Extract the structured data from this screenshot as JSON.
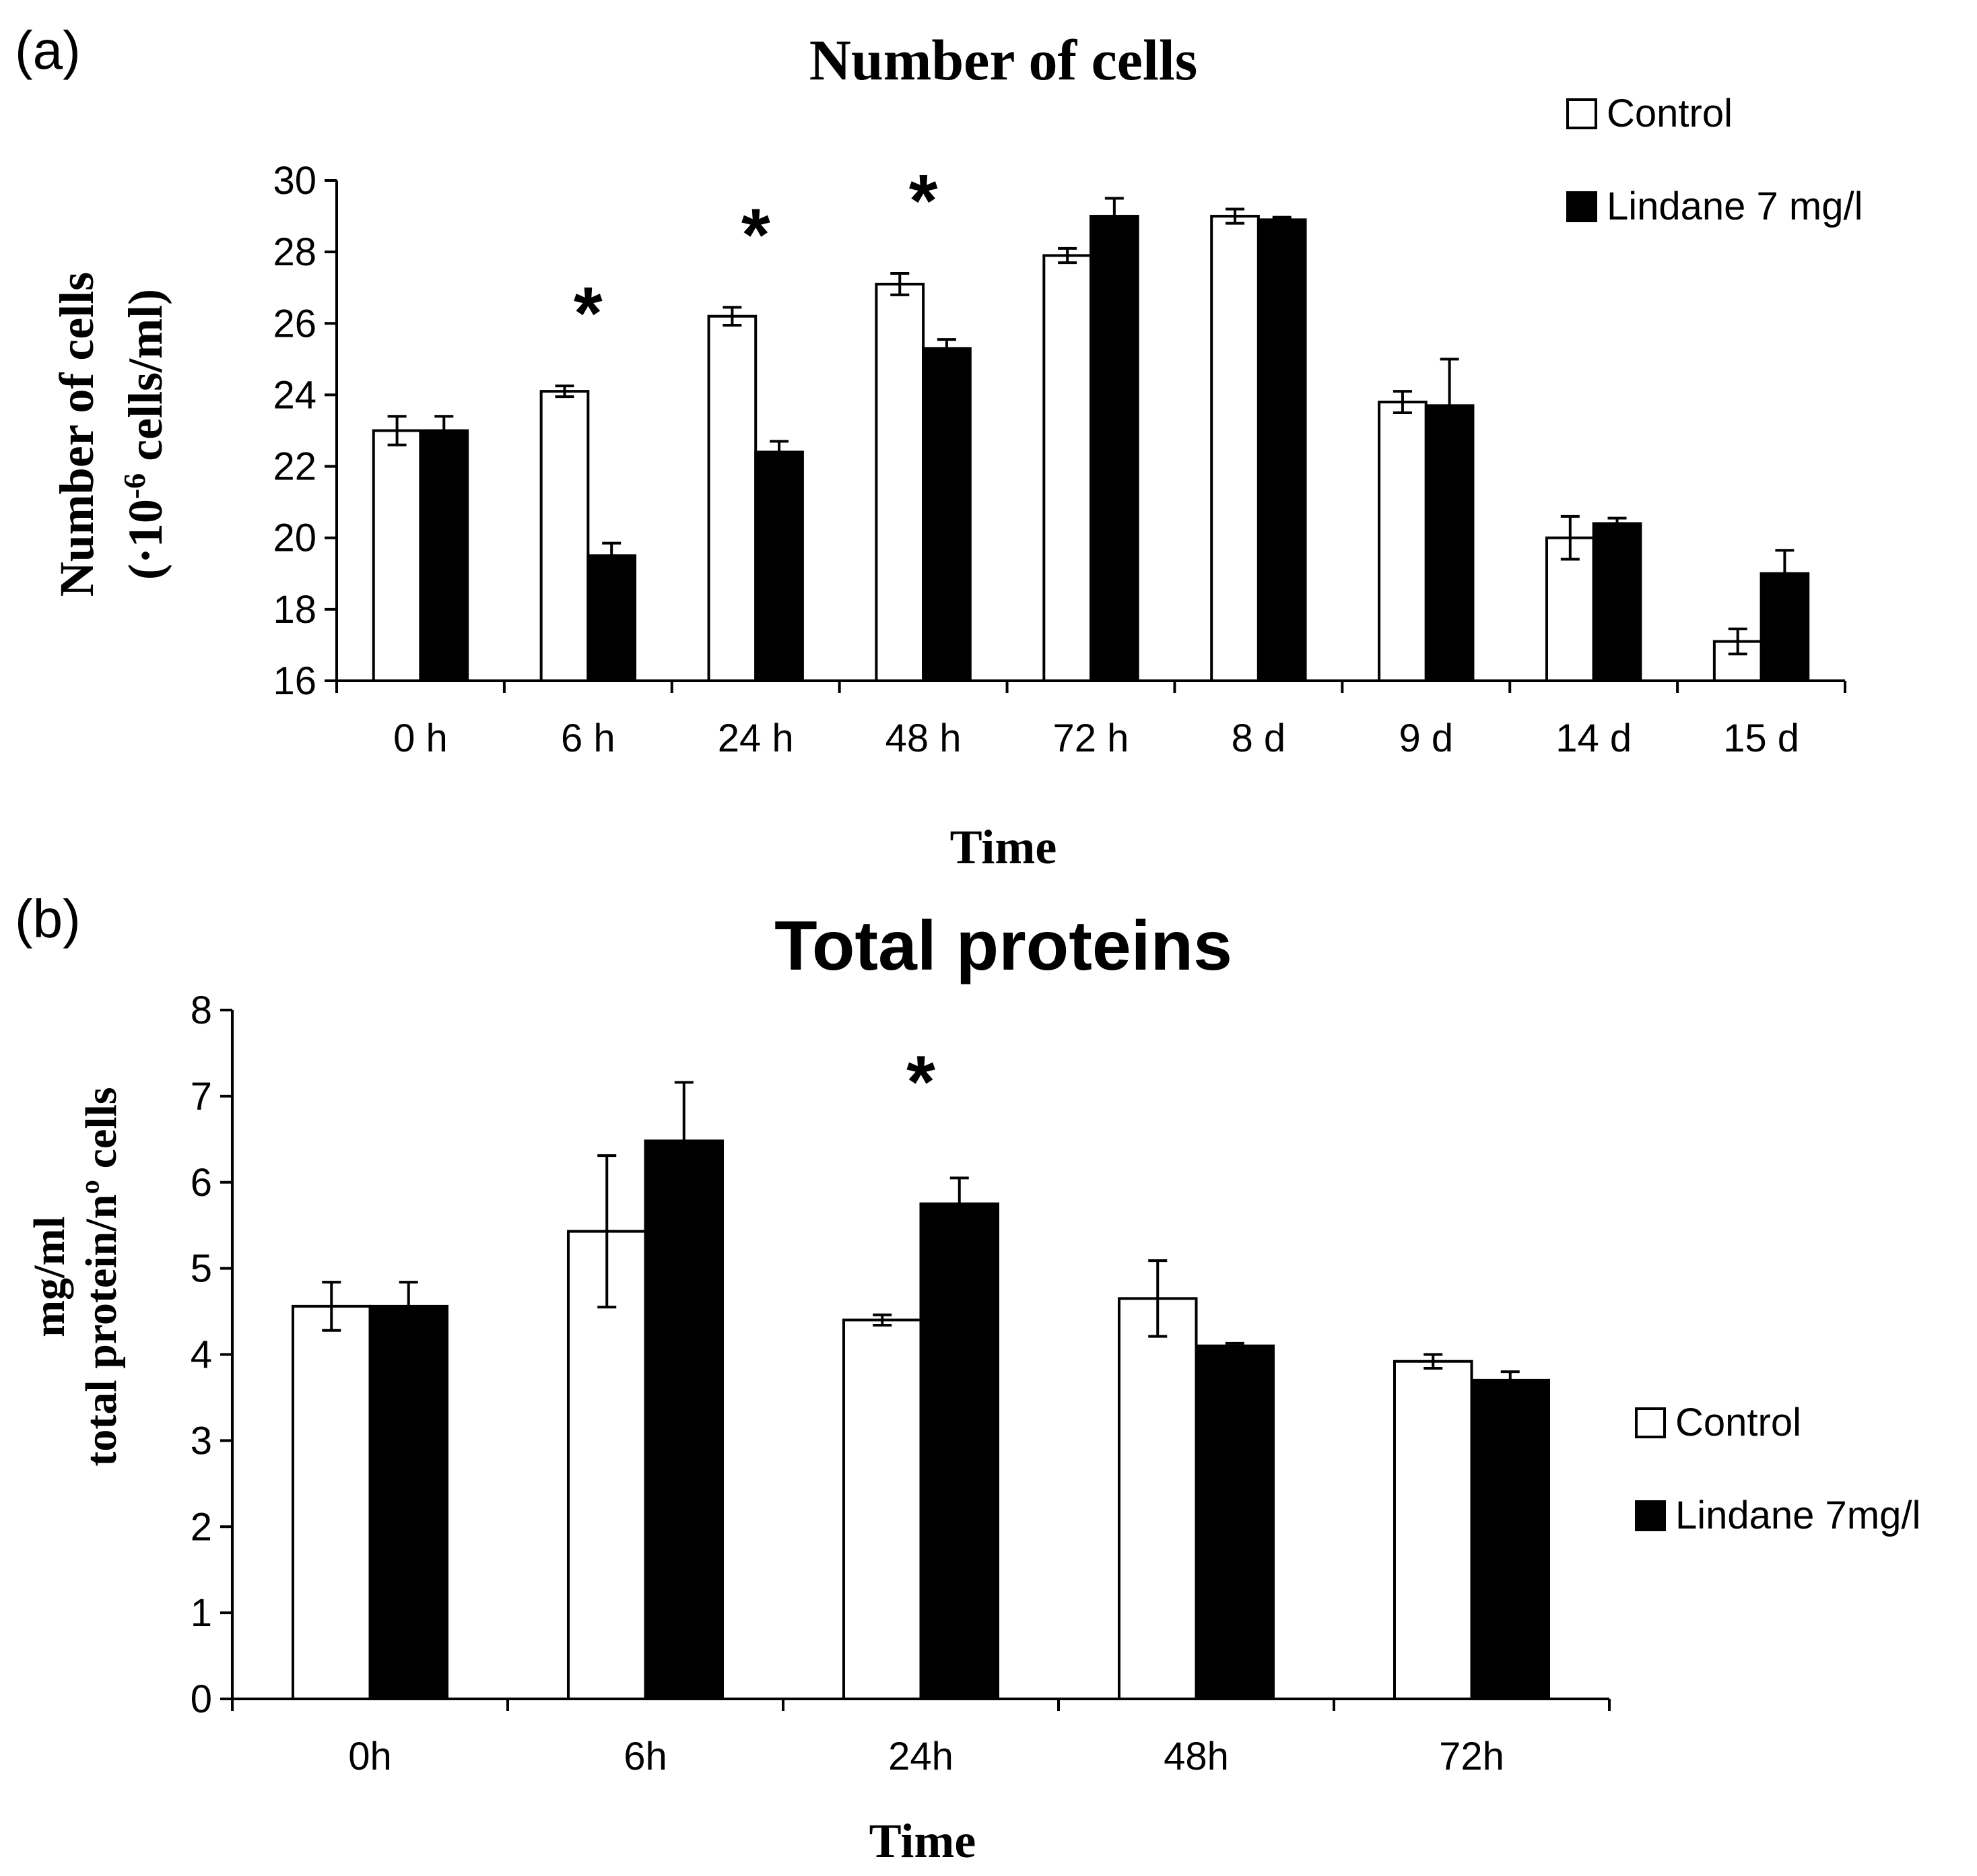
{
  "chart_data": [
    {
      "panel_label": "(a)",
      "type": "bar",
      "title": "Number of cells",
      "xlabel": "Time",
      "ylabel": [
        "Number of cells",
        "(·10",
        "-6",
        " cells/ml)"
      ],
      "ylim": [
        16,
        30
      ],
      "yticks": [
        16,
        18,
        20,
        22,
        24,
        26,
        28,
        30
      ],
      "categories": [
        "0 h",
        "6 h",
        "24 h",
        "48 h",
        "72 h",
        "8 d",
        "9 d",
        "14 d",
        "15 d"
      ],
      "series": [
        {
          "name": "Control",
          "color": "#ffffff",
          "values": [
            23.0,
            24.1,
            26.2,
            27.1,
            27.9,
            29.0,
            23.8,
            20.0,
            17.1
          ],
          "errors": [
            0.4,
            0.15,
            0.25,
            0.3,
            0.2,
            0.2,
            0.3,
            0.6,
            0.35
          ]
        },
        {
          "name": "Lindane 7 mg/l",
          "color": "#000000",
          "values": [
            23.0,
            19.5,
            22.4,
            25.3,
            29.0,
            28.9,
            23.7,
            20.4,
            19.0
          ],
          "errors": [
            0.4,
            0.35,
            0.3,
            0.25,
            0.5,
            0.07,
            1.3,
            0.15,
            0.65
          ]
        }
      ],
      "significance": [
        "",
        "*",
        "*",
        "*",
        "",
        "",
        "",
        "",
        ""
      ],
      "legend_position": "top-right"
    },
    {
      "panel_label": "(b)",
      "type": "bar",
      "title": "Total proteins",
      "xlabel": "Time",
      "ylabel": [
        "mg/ml",
        "total protein/nº cells"
      ],
      "ylim": [
        0,
        8
      ],
      "yticks": [
        0,
        1,
        2,
        3,
        4,
        5,
        6,
        7,
        8
      ],
      "categories": [
        "0h",
        "6h",
        "24h",
        "48h",
        "72h"
      ],
      "series": [
        {
          "name": "Control",
          "color": "#ffffff",
          "values": [
            4.56,
            5.43,
            4.4,
            4.65,
            3.92
          ],
          "errors": [
            0.28,
            0.88,
            0.06,
            0.44,
            0.08
          ]
        },
        {
          "name": "Lindane 7mg/l",
          "color": "#000000",
          "values": [
            4.56,
            6.48,
            5.75,
            4.1,
            3.7
          ],
          "errors": [
            0.28,
            0.68,
            0.3,
            0.03,
            0.1
          ]
        }
      ],
      "significance": [
        "",
        "",
        "*",
        "",
        ""
      ],
      "legend_position": "right"
    }
  ]
}
